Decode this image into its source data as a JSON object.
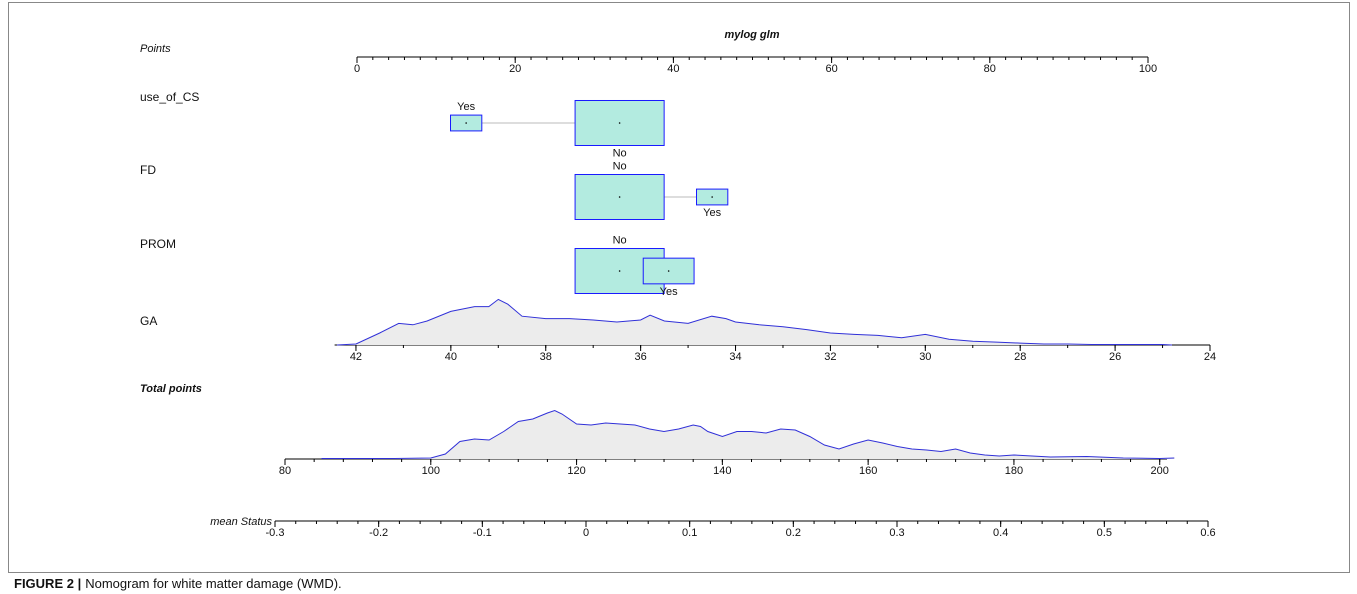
{
  "points_axis": {
    "label": "Points",
    "title": "mylog glm",
    "xlim": [
      0,
      100
    ],
    "xticks": [
      0,
      20,
      40,
      60,
      80,
      100
    ],
    "minor_step": 2
  },
  "variables": [
    {
      "name": "use_of_CS",
      "levels": [
        {
          "label": "Yes",
          "points": 13.8,
          "freq": 0.11,
          "label_pos": "above"
        },
        {
          "label": "No",
          "points": 33.2,
          "freq": 0.89,
          "label_pos": "below"
        }
      ]
    },
    {
      "name": "FD",
      "levels": [
        {
          "label": "No",
          "points": 33.2,
          "freq": 0.89,
          "label_pos": "above"
        },
        {
          "label": "Yes",
          "points": 44.9,
          "freq": 0.11,
          "label_pos": "below"
        }
      ]
    },
    {
      "name": "PROM",
      "levels": [
        {
          "label": "No",
          "points": 33.2,
          "freq": 0.89,
          "label_pos": "above"
        },
        {
          "label": "Yes",
          "points": 39.4,
          "freq": 0.29,
          "label_pos": "below"
        }
      ]
    }
  ],
  "ga": {
    "name": "GA",
    "xlim": [
      42.45,
      24
    ],
    "xticks": [
      42,
      40,
      38,
      36,
      34,
      32,
      30,
      28,
      26,
      24
    ],
    "minor_step": 1,
    "density": {
      "ylim": [
        0,
        1
      ],
      "x": [
        42.4,
        42,
        41.5,
        41.1,
        40.8,
        40.5,
        40,
        39.5,
        39.2,
        39,
        38.8,
        38.5,
        38,
        37.5,
        37,
        36.5,
        36,
        35.8,
        35.5,
        35,
        34.5,
        34.2,
        34,
        33.5,
        33,
        32.5,
        32,
        31.5,
        31,
        30.5,
        30,
        29.5,
        29,
        28.5,
        28,
        27.5,
        27,
        26.5,
        26,
        25,
        24.8
      ],
      "values": [
        0,
        0.02,
        0.25,
        0.45,
        0.42,
        0.5,
        0.7,
        0.8,
        0.8,
        0.95,
        0.85,
        0.6,
        0.55,
        0.55,
        0.52,
        0.48,
        0.52,
        0.62,
        0.5,
        0.45,
        0.6,
        0.55,
        0.48,
        0.42,
        0.38,
        0.32,
        0.25,
        0.22,
        0.2,
        0.15,
        0.22,
        0.12,
        0.08,
        0.06,
        0.04,
        0.02,
        0.02,
        0.01,
        0.01,
        0.01,
        0
      ]
    }
  },
  "total_points": {
    "label": "Total points",
    "xlim": [
      80,
      201
    ],
    "xticks": [
      80,
      100,
      120,
      140,
      160,
      180,
      200
    ],
    "minor_step": 4,
    "density": {
      "ylim": [
        0,
        1
      ],
      "x": [
        85,
        95,
        100,
        102,
        104,
        106,
        108,
        110,
        112,
        114,
        116,
        117,
        118,
        120,
        122,
        124,
        126,
        128,
        130,
        132,
        134,
        136,
        137,
        138,
        140,
        142,
        144,
        146,
        148,
        150,
        152,
        154,
        156,
        158,
        160,
        162,
        164,
        166,
        168,
        170,
        172,
        174,
        176,
        178,
        180,
        185,
        190,
        195,
        200,
        202
      ],
      "values": [
        0.01,
        0.01,
        0.02,
        0.1,
        0.35,
        0.4,
        0.38,
        0.55,
        0.75,
        0.8,
        0.92,
        0.97,
        0.9,
        0.7,
        0.68,
        0.72,
        0.7,
        0.68,
        0.6,
        0.55,
        0.6,
        0.68,
        0.65,
        0.55,
        0.45,
        0.55,
        0.55,
        0.52,
        0.6,
        0.58,
        0.45,
        0.28,
        0.2,
        0.3,
        0.38,
        0.32,
        0.25,
        0.2,
        0.18,
        0.15,
        0.2,
        0.12,
        0.08,
        0.06,
        0.08,
        0.04,
        0.05,
        0.02,
        0.01,
        0.02
      ]
    }
  },
  "mean_status": {
    "label": "mean Status",
    "xlim": [
      -0.3,
      0.6
    ],
    "xticks": [
      -0.3,
      -0.2,
      -0.1,
      0,
      0.1,
      0.2,
      0.3,
      0.4,
      0.5,
      0.6
    ],
    "minor_step": 0.02
  },
  "caption": {
    "figure": "FIGURE 2 |",
    "text": "Nomogram for white matter damage (WMD)."
  }
}
